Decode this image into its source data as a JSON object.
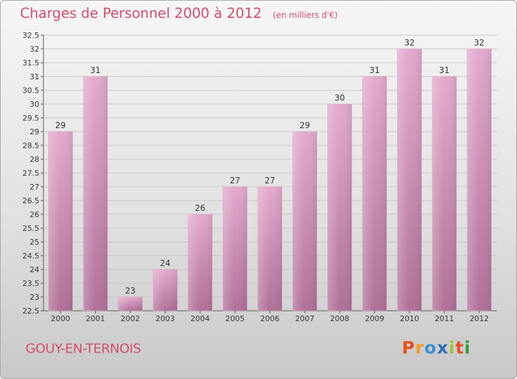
{
  "header": {
    "title": "Charges de Personnel 2000 à 2012",
    "unit": "(en milliers d'€)"
  },
  "footer": {
    "place": "GOUY-EN-TERNOIS",
    "logo_text": "Proxiti",
    "logo_colors": [
      "#e8501e",
      "#f39c1f",
      "#3b8fd1",
      "#2e6fb5",
      "#9bc23c",
      "#e8501e",
      "#2e9c3e"
    ]
  },
  "colors": {
    "title": "#d34f6a",
    "bar_light": "#e3a9cd",
    "bar_dark": "#b07097",
    "axis": "#555555"
  },
  "chart_data": {
    "type": "bar",
    "title": "Charges de Personnel 2000 à 2012",
    "subtitle": "(en milliers d'€)",
    "xlabel": "",
    "ylabel": "",
    "categories": [
      "2000",
      "2001",
      "2002",
      "2003",
      "2004",
      "2005",
      "2006",
      "2007",
      "2008",
      "2009",
      "2010",
      "2011",
      "2012"
    ],
    "values": [
      29,
      31,
      23,
      24,
      26,
      27,
      27,
      29,
      30,
      31,
      32,
      31,
      32
    ],
    "ylim": [
      22.5,
      32.5
    ],
    "yticks": [
      22.5,
      23,
      23.5,
      24,
      24.5,
      25,
      25.5,
      26,
      26.5,
      27,
      27.5,
      28,
      28.5,
      29,
      29.5,
      30,
      30.5,
      31,
      31.5,
      32,
      32.5
    ],
    "grid": true,
    "legend": "none"
  }
}
